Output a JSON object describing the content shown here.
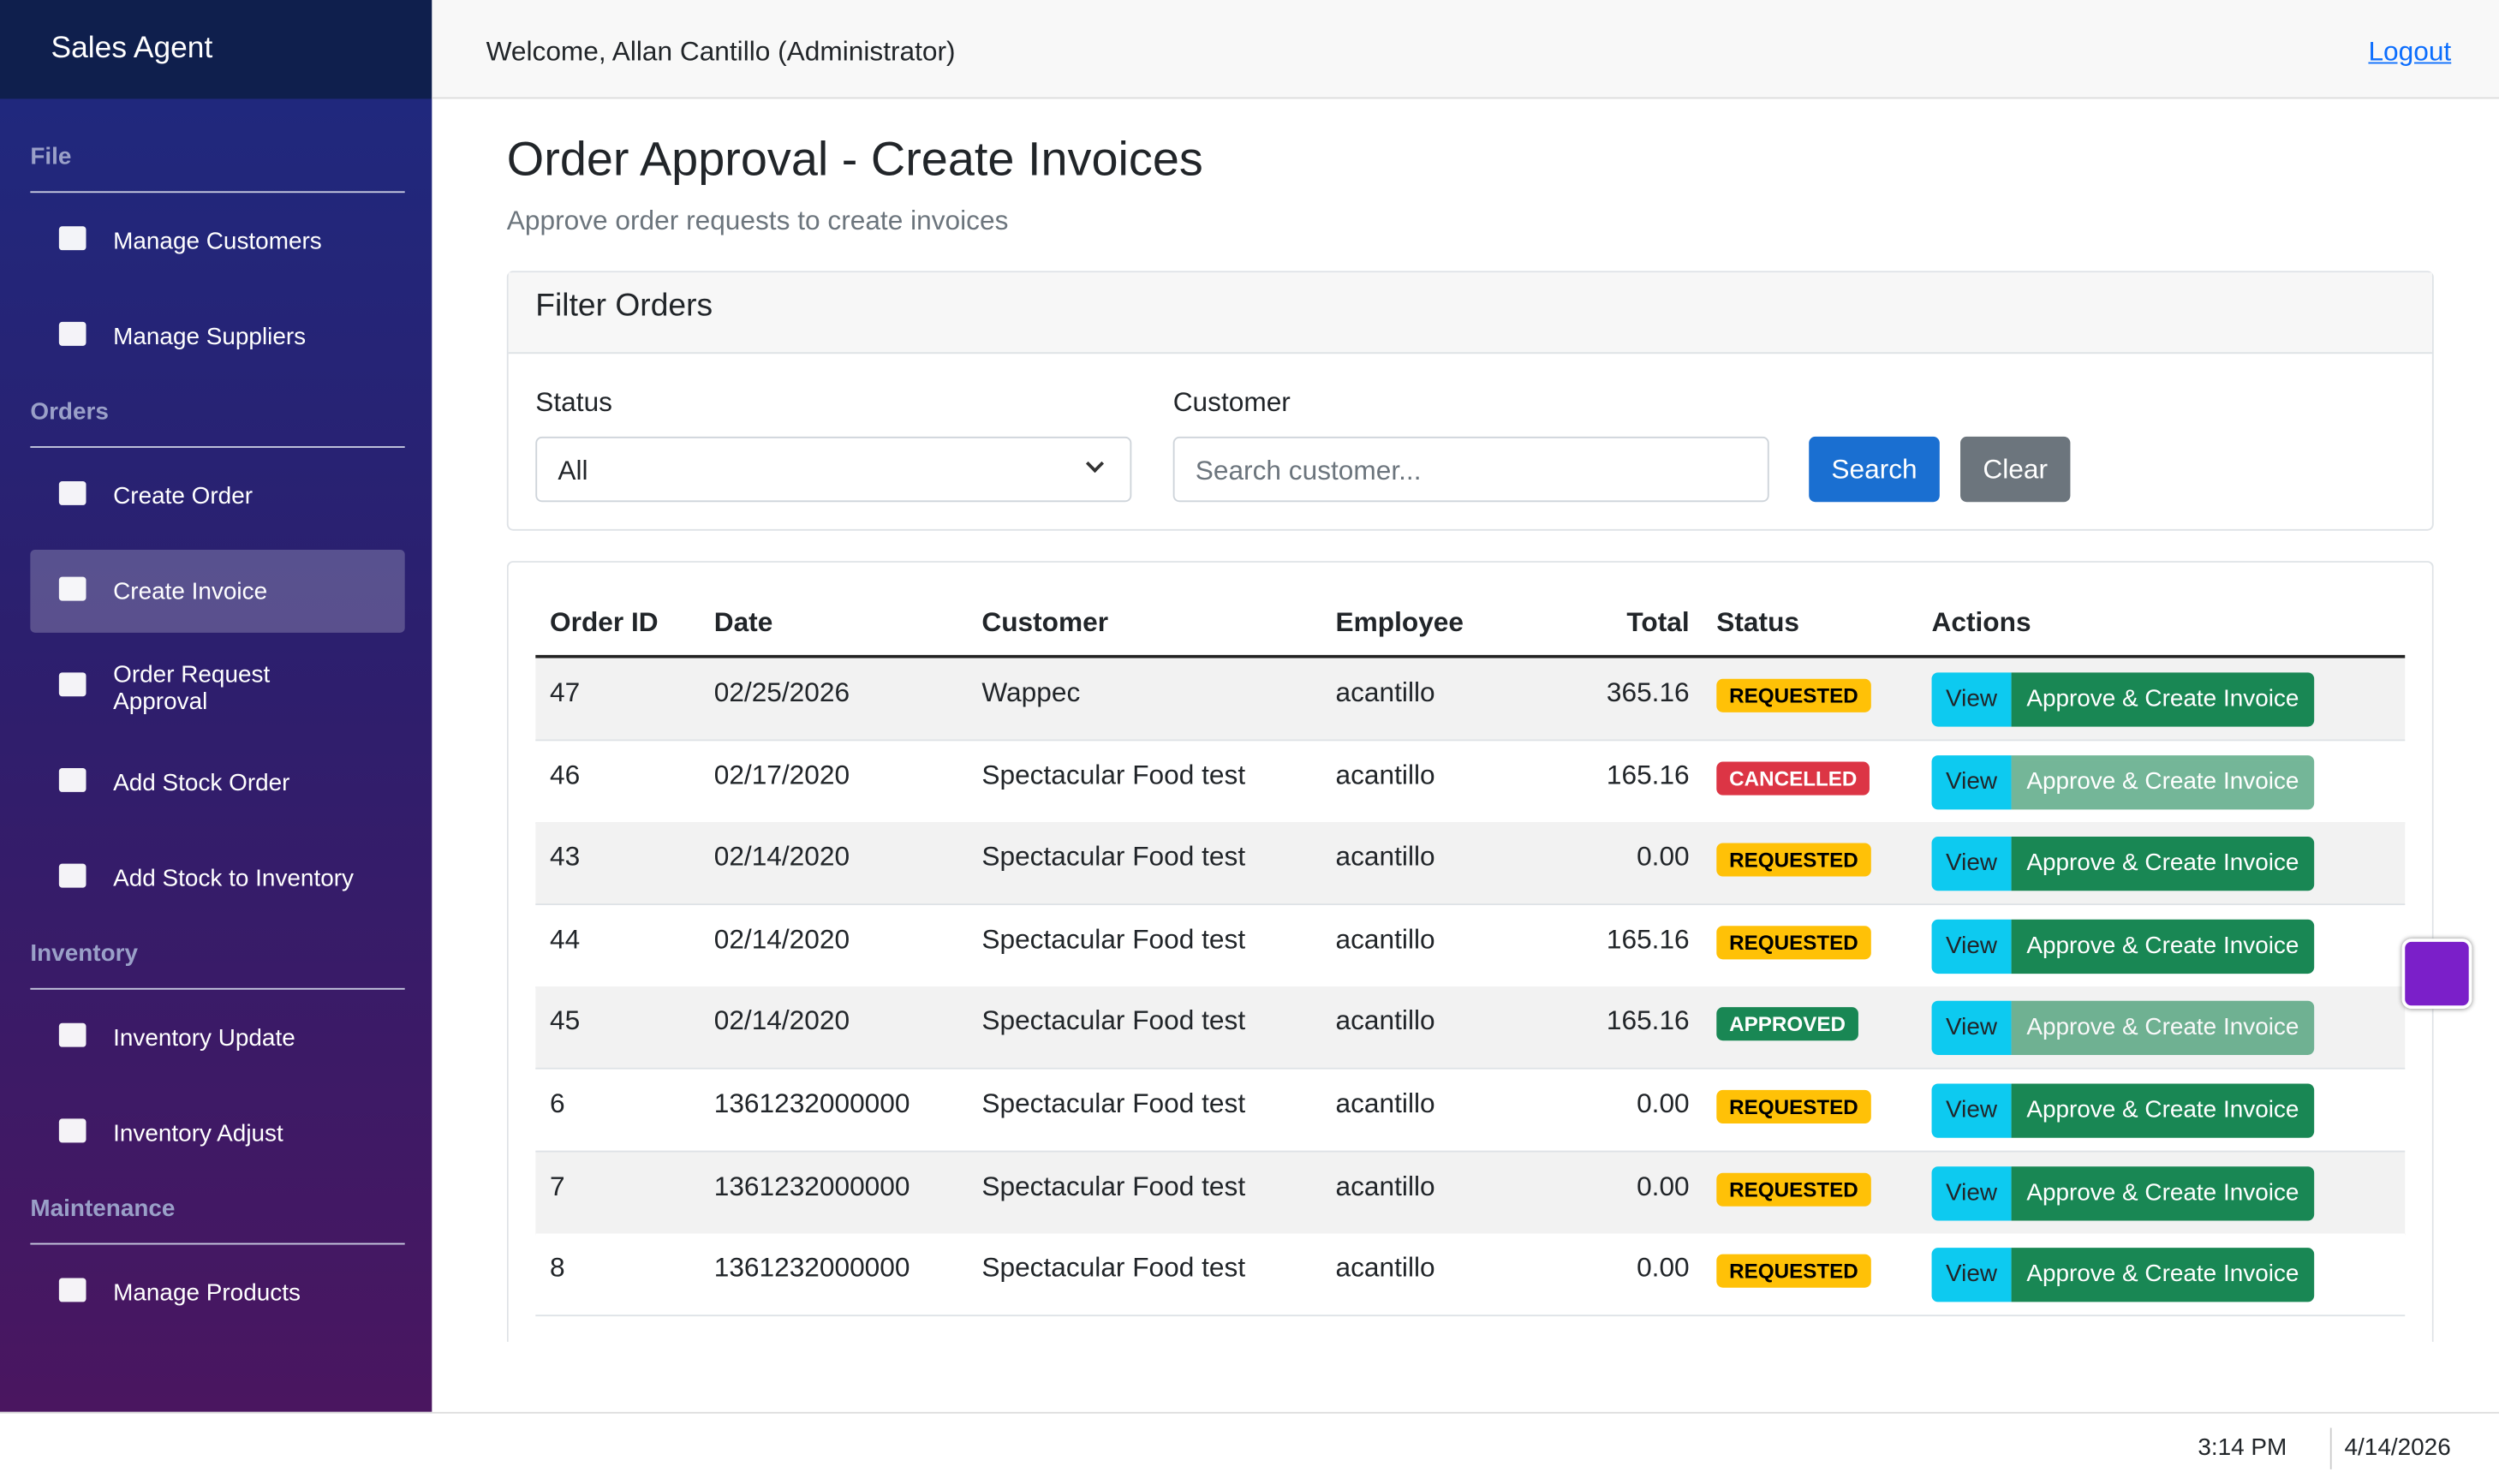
{
  "sidebar": {
    "brand": "Sales Agent",
    "sections": [
      {
        "title": "File",
        "items": [
          "Manage Customers",
          "Manage Suppliers"
        ]
      },
      {
        "title": "Orders",
        "items": [
          "Create Order",
          "Create Invoice",
          "Order Request Approval",
          "Add Stock Order",
          "Add Stock to Inventory"
        ]
      },
      {
        "title": "Inventory",
        "items": [
          "Inventory Update",
          "Inventory Adjust"
        ]
      },
      {
        "title": "Maintenance",
        "items": [
          "Manage Products"
        ]
      }
    ],
    "active": "Create Invoice"
  },
  "header": {
    "welcome": "Welcome, Allan Cantillo (Administrator)",
    "logout": "Logout"
  },
  "page": {
    "title": "Order Approval - Create Invoices",
    "subtitle": "Approve order requests to create invoices"
  },
  "filter": {
    "title": "Filter Orders",
    "status_label": "Status",
    "status_value": "All",
    "customer_label": "Customer",
    "customer_placeholder": "Search customer...",
    "search": "Search",
    "clear": "Clear"
  },
  "table": {
    "columns": [
      "Order ID",
      "Date",
      "Customer",
      "Employee",
      "Total",
      "Status",
      "Actions"
    ],
    "view_label": "View",
    "approve_label": "Approve & Create Invoice",
    "rows": [
      {
        "order_id": "47",
        "date": "02/25/2026",
        "customer": "Wappec",
        "employee": "acantillo",
        "total": "365.16",
        "status": "REQUESTED",
        "status_color": "#ffc107",
        "can_approve": true
      },
      {
        "order_id": "46",
        "date": "02/17/2020",
        "customer": "Spectacular Food test",
        "employee": "acantillo",
        "total": "165.16",
        "status": "CANCELLED",
        "status_color": "#dc3545",
        "can_approve": false
      },
      {
        "order_id": "43",
        "date": "02/14/2020",
        "customer": "Spectacular Food test",
        "employee": "acantillo",
        "total": "0.00",
        "status": "REQUESTED",
        "status_color": "#ffc107",
        "can_approve": true
      },
      {
        "order_id": "44",
        "date": "02/14/2020",
        "customer": "Spectacular Food test",
        "employee": "acantillo",
        "total": "165.16",
        "status": "REQUESTED",
        "status_color": "#ffc107",
        "can_approve": true
      },
      {
        "order_id": "45",
        "date": "02/14/2020",
        "customer": "Spectacular Food test",
        "employee": "acantillo",
        "total": "165.16",
        "status": "APPROVED",
        "status_color": "#198754",
        "can_approve": false
      },
      {
        "order_id": "6",
        "date": "1361232000000",
        "customer": "Spectacular Food test",
        "employee": "acantillo",
        "total": "0.00",
        "status": "REQUESTED",
        "status_color": "#ffc107",
        "can_approve": true
      },
      {
        "order_id": "7",
        "date": "1361232000000",
        "customer": "Spectacular Food test",
        "employee": "acantillo",
        "total": "0.00",
        "status": "REQUESTED",
        "status_color": "#ffc107",
        "can_approve": true
      },
      {
        "order_id": "8",
        "date": "1361232000000",
        "customer": "Spectacular Food test",
        "employee": "acantillo",
        "total": "0.00",
        "status": "REQUESTED",
        "status_color": "#ffc107",
        "can_approve": true
      }
    ]
  },
  "taskbar": {
    "time": "3:14 PM",
    "date": "4/14/2026"
  }
}
